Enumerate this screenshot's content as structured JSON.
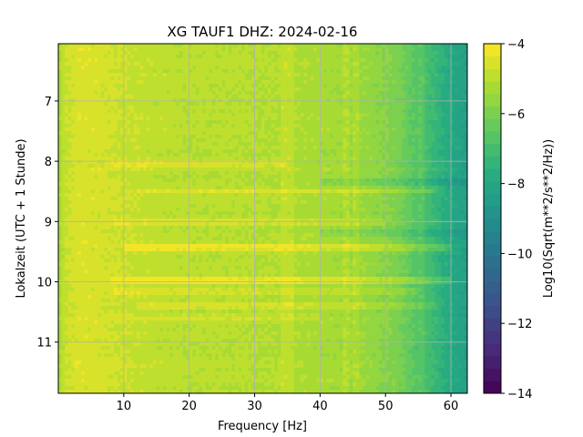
{
  "chart_data": {
    "type": "heatmap",
    "title": "XG TAUF1  DHZ: 2024-02-16",
    "xlabel": "Frequency [Hz]",
    "ylabel": "Lokalzeit (UTC + 1 Stunde)",
    "colorbar_label": "Log10(Sqrt(m**2/s**2/Hz))",
    "xlim": [
      0,
      62.5
    ],
    "ylim": [
      11.85,
      6.05
    ],
    "y_inverted": true,
    "x_ticks": [
      10,
      20,
      30,
      40,
      50,
      60
    ],
    "y_ticks": [
      7,
      8,
      9,
      10,
      11
    ],
    "colorbar_range": [
      -14,
      -4
    ],
    "colorbar_ticks": [
      -4,
      -6,
      -8,
      -10,
      -12,
      -14
    ],
    "colorbar_levels": 28,
    "colormap": "viridis",
    "grid": true,
    "spectral_profile": {
      "frequency_hz": [
        0,
        1,
        3,
        6,
        10,
        15,
        20,
        25,
        30,
        34,
        38,
        42,
        45,
        48,
        52,
        55,
        58,
        60,
        62.5
      ],
      "log10_value": [
        -5.3,
        -4.8,
        -4.5,
        -4.55,
        -4.75,
        -4.9,
        -5.0,
        -5.0,
        -5.05,
        -5.1,
        -5.2,
        -5.3,
        -5.4,
        -5.6,
        -6.0,
        -6.7,
        -7.4,
        -7.9,
        -8.3
      ]
    },
    "bright_bands": [
      {
        "hour": 8.05,
        "f_start": 8,
        "f_end": 35,
        "delta": 0.5
      },
      {
        "hour": 8.5,
        "f_start": 12,
        "f_end": 58,
        "delta": 0.6
      },
      {
        "hour": 9.0,
        "f_start": 8,
        "f_end": 50,
        "delta": 0.35
      },
      {
        "hour": 9.45,
        "f_start": 10,
        "f_end": 60,
        "delta": 0.7
      },
      {
        "hour": 9.97,
        "f_start": 8,
        "f_end": 60,
        "delta": 0.7
      },
      {
        "hour": 10.15,
        "f_start": 8,
        "f_end": 55,
        "delta": 0.4
      },
      {
        "hour": 10.4,
        "f_start": 12,
        "f_end": 58,
        "delta": 0.45
      },
      {
        "hour": 10.6,
        "f_start": 8,
        "f_end": 40,
        "delta": 0.25
      }
    ],
    "dark_bands": [
      {
        "hour": 8.35,
        "f_start": 40,
        "f_end": 62.5,
        "delta": 0.5
      },
      {
        "hour": 9.2,
        "f_start": 40,
        "f_end": 62.5,
        "delta": 0.4
      }
    ],
    "bright_columns_hz": [
      34.5,
      35.5,
      44,
      45.5,
      55.5
    ]
  }
}
